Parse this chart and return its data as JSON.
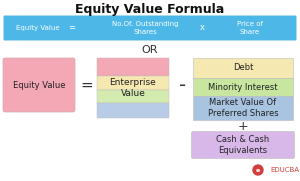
{
  "title": "Equity Value Formula",
  "title_fontsize": 9,
  "bg_color": "#ffffff",
  "top_bar_color": "#4db8e8",
  "top_bar_text_color": "#ffffff",
  "top_bar_label": "Equity Value",
  "top_bar_eq": "=",
  "top_bar_mid": "No.Of. Outstanding\nShares",
  "top_bar_mult": "x",
  "top_bar_right": "Price of\nShare",
  "or_text": "OR",
  "eq_value_box_color": "#f4a8b5",
  "eq_value_box_text": "Equity Value",
  "enterprise_box_colors": [
    "#f4a8b5",
    "#f5e8b0",
    "#d4ebb0",
    "#b8cce8"
  ],
  "enterprise_box_text": "Enterprise\nValue",
  "debt_box_color": "#f5e8b0",
  "debt_box_text": "Debt",
  "minority_box_color": "#c8e6a0",
  "minority_box_text": "Minority Interest",
  "preferred_box_color": "#a8c4e0",
  "preferred_box_text": "Market Value Of\nPreferred Shares",
  "cash_box_color": "#d8b8e8",
  "cash_box_text": "Cash & Cash\nEquivalents",
  "watermark_text": "EDUCBA",
  "watermark_color": "#d04040"
}
